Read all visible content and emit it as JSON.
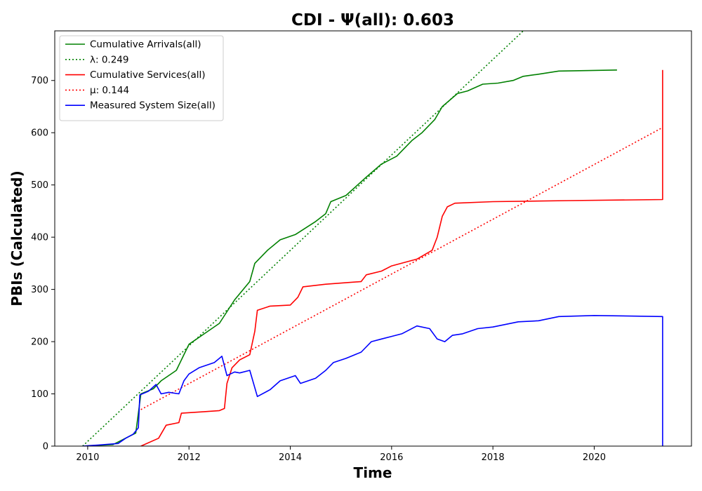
{
  "chart_data": {
    "type": "line",
    "title": "CDI -  Ψ(all): 0.603",
    "xlabel": "Time",
    "ylabel": "PBIs (Calculated)",
    "xlim": [
      2009.35,
      2021.92
    ],
    "ylim": [
      0,
      795
    ],
    "xticks": [
      2010,
      2012,
      2014,
      2016,
      2018,
      2020
    ],
    "yticks": [
      0,
      100,
      200,
      300,
      400,
      500,
      600,
      700
    ],
    "grid": false,
    "legend_position": "top-left",
    "series": [
      {
        "name": "Cumulative Arrivals(all)",
        "color": "#008000",
        "style": "solid",
        "points": [
          [
            2009.9,
            0
          ],
          [
            2010.5,
            3
          ],
          [
            2010.95,
            25
          ],
          [
            2011.05,
            100
          ],
          [
            2011.3,
            110
          ],
          [
            2011.45,
            125
          ],
          [
            2011.75,
            145
          ],
          [
            2012.0,
            195
          ],
          [
            2012.3,
            215
          ],
          [
            2012.6,
            235
          ],
          [
            2012.9,
            280
          ],
          [
            2013.2,
            315
          ],
          [
            2013.3,
            350
          ],
          [
            2013.55,
            375
          ],
          [
            2013.8,
            395
          ],
          [
            2014.1,
            405
          ],
          [
            2014.5,
            430
          ],
          [
            2014.7,
            445
          ],
          [
            2014.8,
            468
          ],
          [
            2015.1,
            480
          ],
          [
            2015.5,
            515
          ],
          [
            2015.8,
            540
          ],
          [
            2016.1,
            555
          ],
          [
            2016.4,
            585
          ],
          [
            2016.6,
            600
          ],
          [
            2016.85,
            625
          ],
          [
            2017.0,
            650
          ],
          [
            2017.3,
            675
          ],
          [
            2017.5,
            680
          ],
          [
            2017.8,
            693
          ],
          [
            2018.1,
            695
          ],
          [
            2018.4,
            700
          ],
          [
            2018.6,
            708
          ],
          [
            2018.9,
            712
          ],
          [
            2019.3,
            718
          ],
          [
            2019.9,
            719
          ],
          [
            2020.45,
            720
          ]
        ]
      },
      {
        "name": "λ: 0.249",
        "color": "#008000",
        "style": "dotted",
        "points": [
          [
            2009.9,
            0
          ],
          [
            2018.6,
            795
          ]
        ]
      },
      {
        "name": "Cumulative Services(all)",
        "color": "#ff0000",
        "style": "solid",
        "points": [
          [
            2011.05,
            0
          ],
          [
            2011.4,
            15
          ],
          [
            2011.55,
            40
          ],
          [
            2011.8,
            45
          ],
          [
            2011.85,
            63
          ],
          [
            2012.3,
            66
          ],
          [
            2012.6,
            68
          ],
          [
            2012.7,
            72
          ],
          [
            2012.75,
            120
          ],
          [
            2012.85,
            150
          ],
          [
            2013.0,
            165
          ],
          [
            2013.2,
            175
          ],
          [
            2013.3,
            220
          ],
          [
            2013.35,
            260
          ],
          [
            2013.6,
            268
          ],
          [
            2014.0,
            270
          ],
          [
            2014.15,
            285
          ],
          [
            2014.25,
            305
          ],
          [
            2014.7,
            310
          ],
          [
            2015.4,
            315
          ],
          [
            2015.5,
            328
          ],
          [
            2015.8,
            335
          ],
          [
            2016.0,
            345
          ],
          [
            2016.5,
            358
          ],
          [
            2016.8,
            375
          ],
          [
            2016.9,
            400
          ],
          [
            2017.0,
            440
          ],
          [
            2017.1,
            458
          ],
          [
            2017.25,
            465
          ],
          [
            2018.0,
            468
          ],
          [
            2019.5,
            470
          ],
          [
            2021.35,
            472
          ],
          [
            2021.35,
            720
          ]
        ]
      },
      {
        "name": "μ: 0.144",
        "color": "#ff0000",
        "style": "dotted",
        "points": [
          [
            2011.05,
            70
          ],
          [
            2021.35,
            610
          ]
        ]
      },
      {
        "name": "Measured System Size(all)",
        "color": "#0000ff",
        "style": "solid",
        "points": [
          [
            2009.9,
            0
          ],
          [
            2010.2,
            2
          ],
          [
            2010.6,
            5
          ],
          [
            2010.75,
            15
          ],
          [
            2010.9,
            23
          ],
          [
            2011.0,
            35
          ],
          [
            2011.03,
            98
          ],
          [
            2011.2,
            105
          ],
          [
            2011.35,
            118
          ],
          [
            2011.45,
            100
          ],
          [
            2011.6,
            103
          ],
          [
            2011.8,
            100
          ],
          [
            2011.9,
            125
          ],
          [
            2012.0,
            138
          ],
          [
            2012.2,
            150
          ],
          [
            2012.5,
            160
          ],
          [
            2012.65,
            172
          ],
          [
            2012.75,
            135
          ],
          [
            2012.9,
            142
          ],
          [
            2013.0,
            140
          ],
          [
            2013.2,
            145
          ],
          [
            2013.35,
            95
          ],
          [
            2013.6,
            108
          ],
          [
            2013.8,
            125
          ],
          [
            2014.1,
            135
          ],
          [
            2014.2,
            120
          ],
          [
            2014.5,
            130
          ],
          [
            2014.7,
            145
          ],
          [
            2014.85,
            160
          ],
          [
            2015.1,
            168
          ],
          [
            2015.4,
            180
          ],
          [
            2015.6,
            200
          ],
          [
            2015.8,
            205
          ],
          [
            2016.0,
            210
          ],
          [
            2016.2,
            215
          ],
          [
            2016.5,
            230
          ],
          [
            2016.75,
            225
          ],
          [
            2016.9,
            205
          ],
          [
            2017.05,
            200
          ],
          [
            2017.2,
            212
          ],
          [
            2017.4,
            215
          ],
          [
            2017.7,
            225
          ],
          [
            2018.0,
            228
          ],
          [
            2018.5,
            238
          ],
          [
            2018.9,
            240
          ],
          [
            2019.3,
            248
          ],
          [
            2020.0,
            250
          ],
          [
            2021.35,
            248
          ],
          [
            2021.35,
            0
          ]
        ]
      }
    ]
  }
}
